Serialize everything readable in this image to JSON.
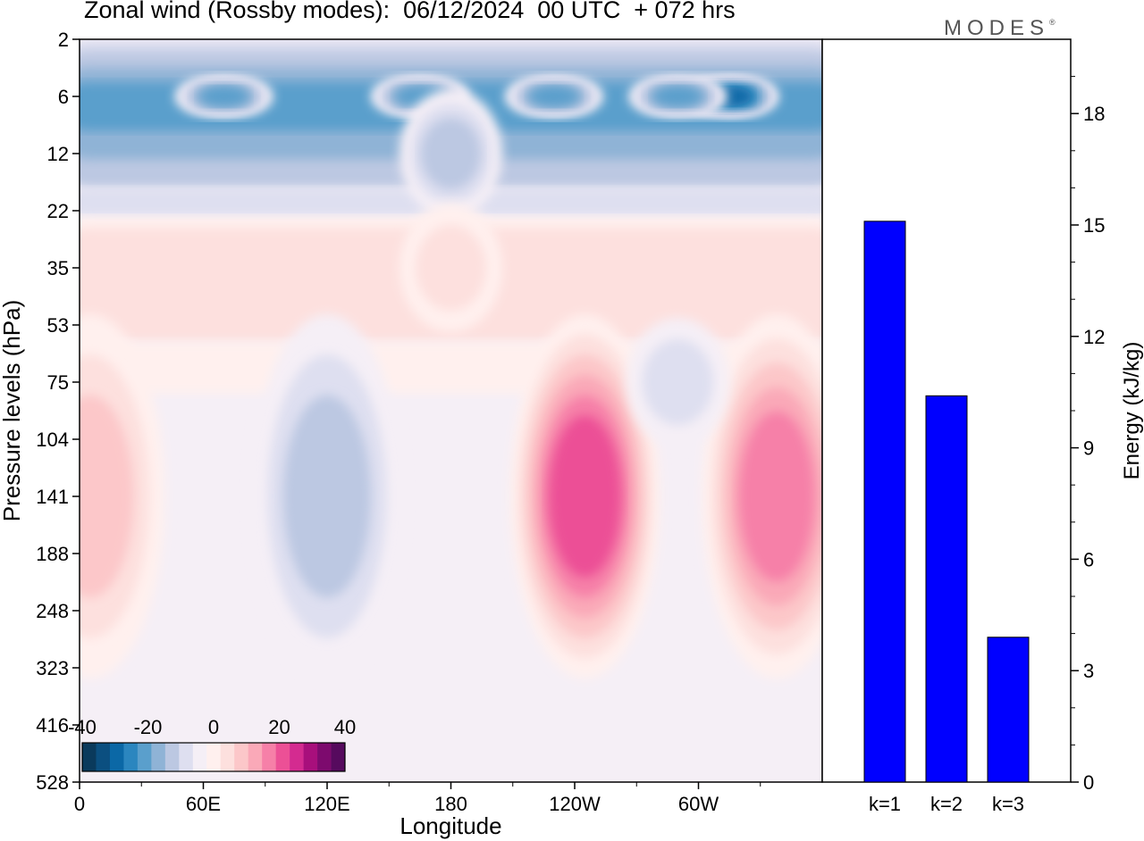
{
  "title": "Zonal wind (Rossby modes):  06/12/2024  00 UTC  + 072 hrs",
  "brand": "MODES",
  "brand_mark": "®",
  "colors": {
    "negative": [
      "#0a3a5c",
      "#0b4f80",
      "#0b68a6",
      "#2b86bf",
      "#5a9fcc",
      "#8fb3d6",
      "#bcc8e2",
      "#dedff0",
      "#f5eff6"
    ],
    "positive": [
      "#fff0ee",
      "#fde0de",
      "#fcc7c9",
      "#faa9b8",
      "#f680a8",
      "#ec5096",
      "#d42b90",
      "#a80f7c",
      "#7d0a6e",
      "#560a5e"
    ],
    "bar": "#0000ff"
  },
  "chart_data": [
    {
      "type": "heatmap",
      "title": "Zonal wind (Rossby modes):  06/12/2024  00 UTC  + 072 hrs",
      "xlabel": "Longitude",
      "ylabel": "Pressure levels (hPa)",
      "x_ticks": [
        "0",
        "60E",
        "120E",
        "180",
        "120W",
        "60W"
      ],
      "y_ticks": [
        "2",
        "6",
        "12",
        "22",
        "35",
        "53",
        "75",
        "104",
        "141",
        "188",
        "248",
        "323",
        "416",
        "528"
      ],
      "colorbar": {
        "ticks": [
          "-40",
          "-20",
          "0",
          "20",
          "40"
        ],
        "range": [
          -40,
          40
        ]
      },
      "features": [
        {
          "lon": 70,
          "level": "6",
          "value": -22
        },
        {
          "lon": 165,
          "level": "6",
          "value": -22
        },
        {
          "lon": 230,
          "level": "6",
          "value": -22
        },
        {
          "lon": 315,
          "level": "6",
          "value": -30
        },
        {
          "lon": 290,
          "level": "6",
          "value": -20
        },
        {
          "lon": 180,
          "level": "12",
          "value": -12
        },
        {
          "lon": 180,
          "level": "35",
          "value": 6
        },
        {
          "lon": 120,
          "level": "141",
          "value": -10
        },
        {
          "lon": 245,
          "level": "141",
          "value": 28
        },
        {
          "lon": 338,
          "level": "141",
          "value": 22
        },
        {
          "lon": 5,
          "level": "141",
          "value": 14
        },
        {
          "lon": 290,
          "level": "75",
          "value": -2
        }
      ]
    },
    {
      "type": "bar",
      "categories": [
        "k=1",
        "k=2",
        "k=3"
      ],
      "values": [
        15.1,
        10.4,
        3.9
      ],
      "ylabel": "Energy (kJ/kg)",
      "y_ticks": [
        "0",
        "3",
        "6",
        "9",
        "12",
        "15",
        "18"
      ],
      "ylim": [
        0,
        20
      ]
    }
  ]
}
